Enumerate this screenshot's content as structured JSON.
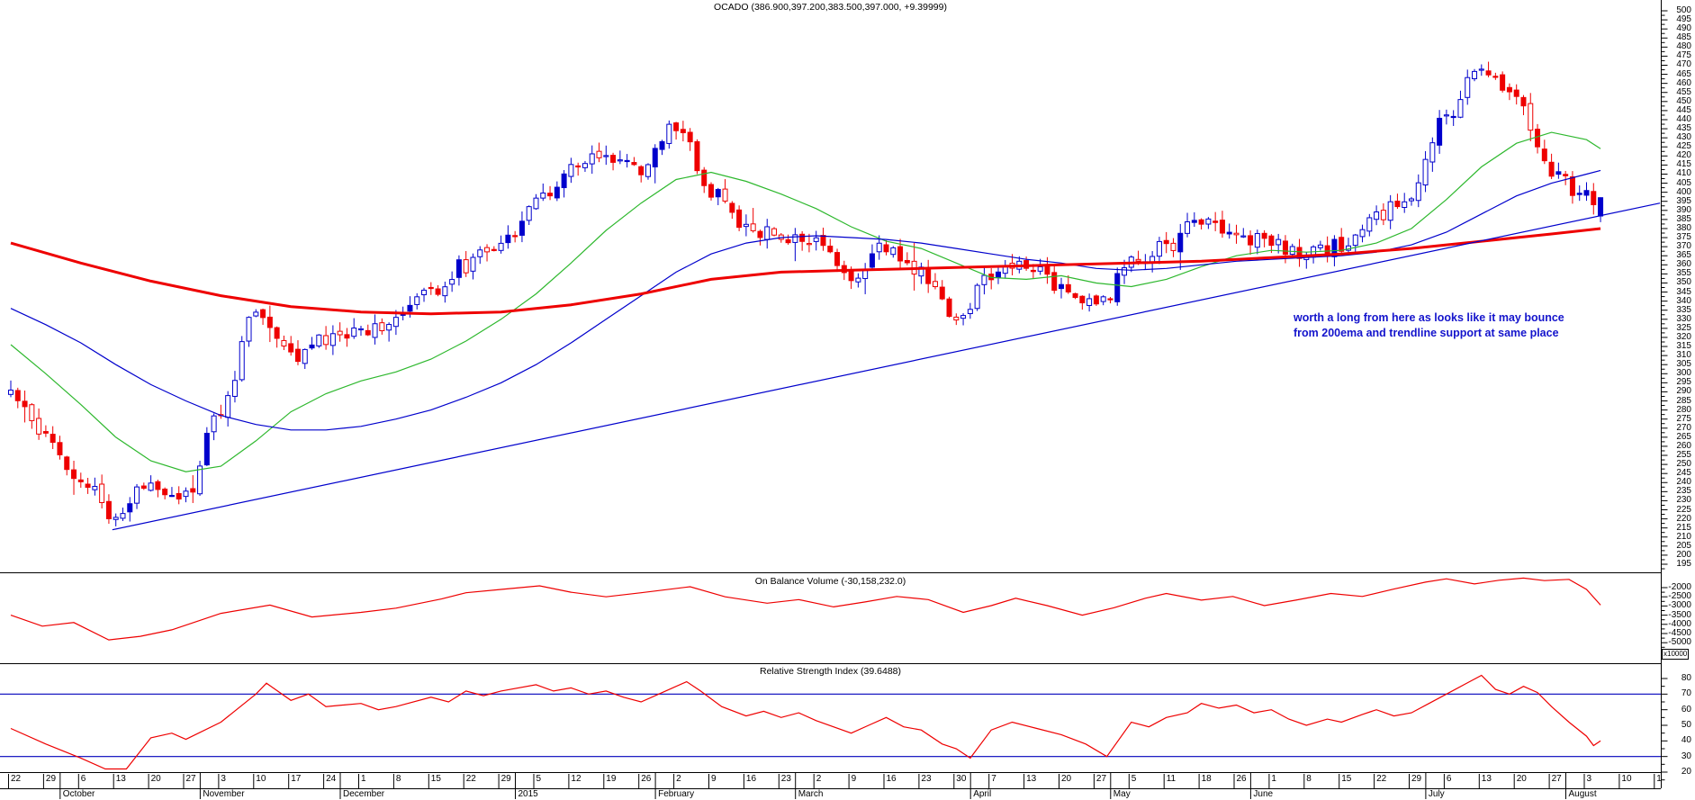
{
  "colors": {
    "background": "#ffffff",
    "axis": "#000000",
    "candle_up": "#0000cc",
    "candle_down": "#ee0000"
  },
  "chart_data": [
    {
      "type": "candlestick",
      "title": "OCADO (386.900,397.200,383.500,397.000, +9.39999)",
      "ohlc_today": {
        "open": 386.9,
        "high": 397.2,
        "low": 383.5,
        "close": 397.0,
        "change": "+9.39999"
      },
      "axis": {
        "min": 195,
        "max": 500,
        "step": 5,
        "minor": 2.5
      },
      "candle_up_color": "#0000cc",
      "candle_down_color": "#ee0000",
      "weekly_closes": [
        290,
        268,
        240,
        222,
        240,
        232,
        280,
        335,
        310,
        318,
        324,
        330,
        345,
        360,
        373,
        395,
        412,
        420,
        412,
        437,
        400,
        380,
        375,
        372,
        352,
        370,
        355,
        330,
        355,
        362,
        348,
        337,
        360,
        370,
        385,
        377,
        372,
        365,
        370,
        386,
        400,
        442,
        470,
        452,
        412,
        397
      ],
      "series": [
        {
          "name": "ema-fast",
          "color": "#2eb82e",
          "width": 1.2,
          "points": [
            [
              0,
              316
            ],
            [
              1,
              300
            ],
            [
              2,
              283
            ],
            [
              3,
              265
            ],
            [
              4,
              252
            ],
            [
              5,
              246
            ],
            [
              6,
              249
            ],
            [
              7,
              263
            ],
            [
              8,
              279
            ],
            [
              9,
              289
            ],
            [
              10,
              296
            ],
            [
              11,
              301
            ],
            [
              12,
              308
            ],
            [
              13,
              318
            ],
            [
              14,
              330
            ],
            [
              15,
              344
            ],
            [
              16,
              361
            ],
            [
              17,
              379
            ],
            [
              18,
              394
            ],
            [
              19,
              407
            ],
            [
              20,
              411
            ],
            [
              21,
              406
            ],
            [
              22,
              399
            ],
            [
              23,
              391
            ],
            [
              24,
              381
            ],
            [
              25,
              373
            ],
            [
              26,
              369
            ],
            [
              27,
              361
            ],
            [
              28,
              353
            ],
            [
              29,
              352
            ],
            [
              30,
              354
            ],
            [
              31,
              350
            ],
            [
              32,
              348
            ],
            [
              33,
              352
            ],
            [
              34,
              359
            ],
            [
              35,
              365
            ],
            [
              36,
              368
            ],
            [
              37,
              367
            ],
            [
              38,
              368
            ],
            [
              39,
              372
            ],
            [
              40,
              380
            ],
            [
              41,
              396
            ],
            [
              42,
              414
            ],
            [
              43,
              427
            ],
            [
              44,
              433
            ],
            [
              45,
              429
            ],
            [
              45.4,
              424
            ]
          ]
        },
        {
          "name": "ema-slow",
          "color": "#0000cc",
          "width": 1.2,
          "points": [
            [
              0,
              336
            ],
            [
              1,
              327
            ],
            [
              2,
              317
            ],
            [
              3,
              305
            ],
            [
              4,
              294
            ],
            [
              5,
              285
            ],
            [
              6,
              277
            ],
            [
              7,
              272
            ],
            [
              8,
              269
            ],
            [
              9,
              269
            ],
            [
              10,
              271
            ],
            [
              11,
              275
            ],
            [
              12,
              280
            ],
            [
              13,
              287
            ],
            [
              14,
              295
            ],
            [
              15,
              305
            ],
            [
              16,
              317
            ],
            [
              17,
              330
            ],
            [
              18,
              343
            ],
            [
              19,
              356
            ],
            [
              20,
              366
            ],
            [
              21,
              372
            ],
            [
              22,
              375
            ],
            [
              23,
              376
            ],
            [
              24,
              375
            ],
            [
              25,
              374
            ],
            [
              26,
              372
            ],
            [
              27,
              369
            ],
            [
              28,
              366
            ],
            [
              29,
              363
            ],
            [
              30,
              361
            ],
            [
              31,
              358
            ],
            [
              32,
              357
            ],
            [
              33,
              358
            ],
            [
              34,
              360
            ],
            [
              35,
              362
            ],
            [
              36,
              363
            ],
            [
              37,
              364
            ],
            [
              38,
              365
            ],
            [
              39,
              367
            ],
            [
              40,
              371
            ],
            [
              41,
              378
            ],
            [
              42,
              388
            ],
            [
              43,
              398
            ],
            [
              44,
              405
            ],
            [
              45,
              410
            ],
            [
              45.4,
              412
            ]
          ]
        },
        {
          "name": "ema-200",
          "color": "#ee0000",
          "width": 3,
          "points": [
            [
              0,
              372
            ],
            [
              2,
              361
            ],
            [
              4,
              351
            ],
            [
              6,
              343
            ],
            [
              8,
              337
            ],
            [
              10,
              334
            ],
            [
              12,
              333
            ],
            [
              14,
              334
            ],
            [
              16,
              338
            ],
            [
              18,
              344
            ],
            [
              20,
              352
            ],
            [
              22,
              356
            ],
            [
              24,
              357
            ],
            [
              26,
              358
            ],
            [
              28,
              359
            ],
            [
              30,
              360
            ],
            [
              32,
              361
            ],
            [
              34,
              362
            ],
            [
              36,
              364
            ],
            [
              38,
              366
            ],
            [
              40,
              369
            ],
            [
              42,
              373
            ],
            [
              44,
              377
            ],
            [
              45.4,
              380
            ]
          ]
        },
        {
          "name": "trendline",
          "color": "#0000cc",
          "width": 1.2,
          "points": [
            [
              2.9,
              214
            ],
            [
              47.1,
              394
            ]
          ]
        }
      ],
      "annotation": {
        "lines": [
          "worth a long from here as looks like it may bounce",
          "from 200ema and trendline support at same place"
        ],
        "color": "#1414cc"
      }
    },
    {
      "type": "line",
      "title": "On Balance Volume (-30,158,232.0)",
      "value": "-30,158,232.0",
      "multiplier": "x10000",
      "axis": {
        "min": -5000,
        "max": -2000,
        "step": 500,
        "minor": 250
      },
      "color": "#ee0000",
      "points": [
        [
          0,
          -3500
        ],
        [
          0.9,
          -4100
        ],
        [
          1.8,
          -3900
        ],
        [
          2.8,
          -4850
        ],
        [
          3.7,
          -4650
        ],
        [
          4.6,
          -4300
        ],
        [
          6,
          -3400
        ],
        [
          7.4,
          -2950
        ],
        [
          8.6,
          -3600
        ],
        [
          10,
          -3350
        ],
        [
          11,
          -3120
        ],
        [
          12.3,
          -2620
        ],
        [
          13,
          -2280
        ],
        [
          14,
          -2100
        ],
        [
          15.1,
          -1900
        ],
        [
          16,
          -2250
        ],
        [
          17,
          -2500
        ],
        [
          18,
          -2280
        ],
        [
          19.4,
          -1950
        ],
        [
          20.4,
          -2500
        ],
        [
          21.6,
          -2850
        ],
        [
          22.5,
          -2650
        ],
        [
          23.5,
          -3050
        ],
        [
          24.4,
          -2780
        ],
        [
          25.3,
          -2480
        ],
        [
          26.2,
          -2650
        ],
        [
          27.2,
          -3350
        ],
        [
          28,
          -2980
        ],
        [
          28.7,
          -2580
        ],
        [
          29.6,
          -2980
        ],
        [
          30.6,
          -3500
        ],
        [
          31.5,
          -3100
        ],
        [
          32.4,
          -2580
        ],
        [
          33,
          -2320
        ],
        [
          34,
          -2680
        ],
        [
          34.9,
          -2480
        ],
        [
          35.8,
          -2980
        ],
        [
          36.7,
          -2680
        ],
        [
          37.7,
          -2320
        ],
        [
          38.6,
          -2480
        ],
        [
          39.5,
          -2080
        ],
        [
          40.4,
          -1700
        ],
        [
          41,
          -1520
        ],
        [
          41.8,
          -1800
        ],
        [
          42.5,
          -1600
        ],
        [
          43.2,
          -1480
        ],
        [
          43.8,
          -1620
        ],
        [
          44.5,
          -1550
        ],
        [
          45,
          -2100
        ],
        [
          45.4,
          -2950
        ]
      ]
    },
    {
      "type": "line",
      "title": "Relative Strength Index (39.6488)",
      "value": "39.6488",
      "axis": {
        "min": 20,
        "max": 80,
        "step": 10,
        "minor": 5
      },
      "guides": [
        30,
        70
      ],
      "guide_color": "#0000bb",
      "color": "#ee0000",
      "points": [
        [
          0,
          48
        ],
        [
          1,
          38
        ],
        [
          2,
          29
        ],
        [
          2.7,
          22
        ],
        [
          3.3,
          22
        ],
        [
          4,
          42
        ],
        [
          4.6,
          45
        ],
        [
          5,
          41
        ],
        [
          6,
          52
        ],
        [
          7,
          70
        ],
        [
          7.3,
          77
        ],
        [
          8,
          66
        ],
        [
          8.5,
          70
        ],
        [
          9,
          62
        ],
        [
          10,
          64
        ],
        [
          10.5,
          60
        ],
        [
          11,
          62
        ],
        [
          12,
          68
        ],
        [
          12.5,
          65
        ],
        [
          13,
          72
        ],
        [
          13.5,
          69
        ],
        [
          14,
          72
        ],
        [
          15,
          76
        ],
        [
          15.5,
          72
        ],
        [
          16,
          74
        ],
        [
          16.5,
          70
        ],
        [
          17,
          72
        ],
        [
          17.5,
          68
        ],
        [
          18,
          65
        ],
        [
          18.7,
          72
        ],
        [
          19.3,
          78
        ],
        [
          19.7,
          72
        ],
        [
          20.3,
          62
        ],
        [
          21,
          56
        ],
        [
          21.5,
          59
        ],
        [
          22,
          55
        ],
        [
          22.5,
          58
        ],
        [
          23,
          53
        ],
        [
          24,
          45
        ],
        [
          24.5,
          50
        ],
        [
          25,
          55
        ],
        [
          25.5,
          49
        ],
        [
          26,
          47
        ],
        [
          26.6,
          38
        ],
        [
          27,
          35
        ],
        [
          27.4,
          29
        ],
        [
          28,
          47
        ],
        [
          28.6,
          52
        ],
        [
          29.3,
          48
        ],
        [
          30,
          44
        ],
        [
          30.7,
          38
        ],
        [
          31.3,
          30
        ],
        [
          32,
          52
        ],
        [
          32.5,
          49
        ],
        [
          33,
          55
        ],
        [
          33.6,
          58
        ],
        [
          34,
          64
        ],
        [
          34.5,
          61
        ],
        [
          35,
          63
        ],
        [
          35.5,
          58
        ],
        [
          36,
          60
        ],
        [
          36.5,
          54
        ],
        [
          37,
          50
        ],
        [
          37.6,
          54
        ],
        [
          38,
          52
        ],
        [
          38.6,
          57
        ],
        [
          39,
          60
        ],
        [
          39.5,
          56
        ],
        [
          40,
          58
        ],
        [
          40.5,
          64
        ],
        [
          41,
          70
        ],
        [
          41.5,
          76
        ],
        [
          42,
          82
        ],
        [
          42.4,
          73
        ],
        [
          42.8,
          70
        ],
        [
          43.2,
          75
        ],
        [
          43.6,
          71
        ],
        [
          44,
          62
        ],
        [
          44.5,
          52
        ],
        [
          45,
          43
        ],
        [
          45.2,
          37
        ],
        [
          45.4,
          40
        ]
      ]
    }
  ],
  "x_axis": {
    "weeks": [
      {
        "d": "22"
      },
      {
        "d": "29"
      },
      {
        "d": "6",
        "m": "October"
      },
      {
        "d": "13"
      },
      {
        "d": "20"
      },
      {
        "d": "27"
      },
      {
        "d": "3",
        "m": "November"
      },
      {
        "d": "10"
      },
      {
        "d": "17"
      },
      {
        "d": "24"
      },
      {
        "d": "1",
        "m": "December"
      },
      {
        "d": "8"
      },
      {
        "d": "15"
      },
      {
        "d": "22"
      },
      {
        "d": "29"
      },
      {
        "d": "5",
        "m": "2015"
      },
      {
        "d": "12"
      },
      {
        "d": "19"
      },
      {
        "d": "26"
      },
      {
        "d": "2",
        "m": "February"
      },
      {
        "d": "9"
      },
      {
        "d": "16"
      },
      {
        "d": "23"
      },
      {
        "d": "2",
        "m": "March"
      },
      {
        "d": "9"
      },
      {
        "d": "16"
      },
      {
        "d": "23"
      },
      {
        "d": "30"
      },
      {
        "d": "7",
        "m": "April"
      },
      {
        "d": "13"
      },
      {
        "d": "20"
      },
      {
        "d": "27"
      },
      {
        "d": "5",
        "m": "May"
      },
      {
        "d": "11"
      },
      {
        "d": "18"
      },
      {
        "d": "26"
      },
      {
        "d": "1",
        "m": "June"
      },
      {
        "d": "8"
      },
      {
        "d": "15"
      },
      {
        "d": "22"
      },
      {
        "d": "29"
      },
      {
        "d": "6",
        "m": "July"
      },
      {
        "d": "13"
      },
      {
        "d": "20"
      },
      {
        "d": "27"
      },
      {
        "d": "3",
        "m": "August"
      },
      {
        "d": "10"
      },
      {
        "d": "1"
      }
    ]
  }
}
